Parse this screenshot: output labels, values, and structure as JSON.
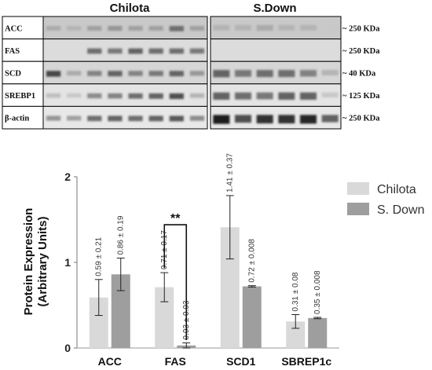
{
  "blot": {
    "panels": [
      {
        "title": "Chilota",
        "lanes": 8
      },
      {
        "title": "S.Down",
        "lanes": 6
      }
    ],
    "rows": [
      {
        "label": "ACC",
        "kda": "~ 250 KDa",
        "bg": "#c9c9c9",
        "band": [
          0.25,
          0.2,
          0.3,
          0.35,
          0.3,
          0.3,
          0.55,
          0.3
        ],
        "band2": [
          0.2,
          0.2,
          0.25,
          0.2,
          0.2,
          0.1
        ]
      },
      {
        "label": "FAS",
        "kda": "~ 250 KDa",
        "bg": "#dcdcdc",
        "band": [
          0,
          0,
          0.55,
          0.5,
          0.6,
          0.55,
          0.55,
          0.5
        ],
        "band2": [
          0,
          0,
          0,
          0,
          0,
          0
        ]
      },
      {
        "label": "SCD",
        "kda": "~ 40 KDa",
        "bg": "#d6d6d6",
        "band": [
          0.75,
          0.25,
          0.45,
          0.6,
          0.45,
          0.5,
          0.6,
          0.35
        ],
        "band2": [
          0.6,
          0.5,
          0.55,
          0.55,
          0.45,
          0.2
        ]
      },
      {
        "label": "SREBP1",
        "kda": "~ 125 KDa",
        "bg": "#e4e4e4",
        "band": [
          0.15,
          0.1,
          0.4,
          0.45,
          0.55,
          0.6,
          0.7,
          0.2
        ],
        "band2": [
          0.6,
          0.55,
          0.5,
          0.6,
          0.6,
          0.1
        ]
      },
      {
        "label": "β-actin",
        "kda": "~ 250 KDa",
        "bg": "#e8e8e8",
        "band": [
          0.35,
          0.3,
          0.55,
          0.6,
          0.55,
          0.6,
          0.65,
          0.4
        ],
        "band2": [
          0.95,
          0.7,
          0.85,
          0.85,
          0.9,
          0.6
        ]
      }
    ]
  },
  "chart_data": {
    "type": "bar",
    "categories": [
      "ACC",
      "FAS",
      "SCD1",
      "SBREP1c"
    ],
    "series": [
      {
        "name": "Chilota",
        "values": [
          0.59,
          0.71,
          1.41,
          0.31
        ],
        "errors": [
          0.21,
          0.17,
          0.37,
          0.08
        ],
        "labels": [
          "0.59 ± 0.21",
          "0.71 ± 0.17",
          "1.41 ± 0.37",
          "0.31 ± 0.08"
        ],
        "color": "#d9d9d9"
      },
      {
        "name": "S. Down",
        "values": [
          0.86,
          0.03,
          0.72,
          0.35
        ],
        "errors": [
          0.19,
          0.03,
          0.008,
          0.008
        ],
        "labels": [
          "0.86 ± 0.19",
          "0.03 ± 0.03",
          "0.72 ± 0.008",
          "0.35 ± 0.008"
        ],
        "color": "#9e9e9e"
      }
    ],
    "ylabel_line1": "Protein Expression",
    "ylabel_line2": "(Arbitrary Units)",
    "ylim": [
      0,
      2
    ],
    "yticks": [
      "0",
      "1",
      "2"
    ],
    "significance": {
      "category": "FAS",
      "label": "**"
    },
    "grid": false,
    "legend_position": "top-right"
  }
}
